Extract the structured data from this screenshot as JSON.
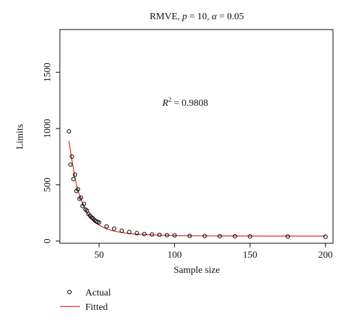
{
  "chart_data": {
    "type": "scatter",
    "title": {
      "prefix": "RMVE, ",
      "p_symbol": "p",
      "p_value": " = 10, ",
      "alpha_symbol": "α",
      "alpha_value": " = 0.05"
    },
    "annotation": {
      "r_symbol": "R",
      "r_exp": "2",
      "r_value": " = 0.9808"
    },
    "xlabel": "Sample size",
    "ylabel": "Limits",
    "xlim": [
      24,
      205
    ],
    "ylim": [
      -20,
      1880
    ],
    "x_ticks": [
      50,
      100,
      150,
      200
    ],
    "y_ticks": [
      0,
      500,
      1000,
      1500
    ],
    "grid": false,
    "legend_position": "bottom-left",
    "series": [
      {
        "name": "Actual",
        "kind": "points",
        "color": "#000000",
        "x": [
          30,
          31,
          32,
          33,
          34,
          35,
          36,
          37,
          38,
          39,
          40,
          41,
          42,
          43,
          44,
          45,
          46,
          47,
          48,
          49,
          50,
          55,
          60,
          65,
          70,
          75,
          80,
          85,
          90,
          95,
          100,
          110,
          120,
          130,
          140,
          150,
          175,
          200
        ],
        "y": [
          975,
          680,
          750,
          550,
          590,
          445,
          460,
          375,
          385,
          310,
          330,
          280,
          270,
          240,
          225,
          210,
          200,
          185,
          175,
          170,
          165,
          130,
          110,
          92,
          80,
          70,
          62,
          58,
          55,
          52,
          50,
          46,
          44,
          43,
          42,
          41,
          40,
          38
        ]
      },
      {
        "name": "Fitted",
        "kind": "line",
        "color": "#d62020",
        "x": [
          30,
          32,
          34,
          36,
          38,
          40,
          42,
          44,
          46,
          48,
          50,
          55,
          60,
          65,
          70,
          75,
          80,
          90,
          100,
          120,
          140,
          160,
          180,
          200
        ],
        "y": [
          890,
          720,
          560,
          450,
          370,
          305,
          255,
          215,
          185,
          160,
          140,
          108,
          88,
          75,
          67,
          61,
          57,
          52,
          49,
          46,
          45,
          44,
          44,
          44
        ]
      }
    ]
  }
}
